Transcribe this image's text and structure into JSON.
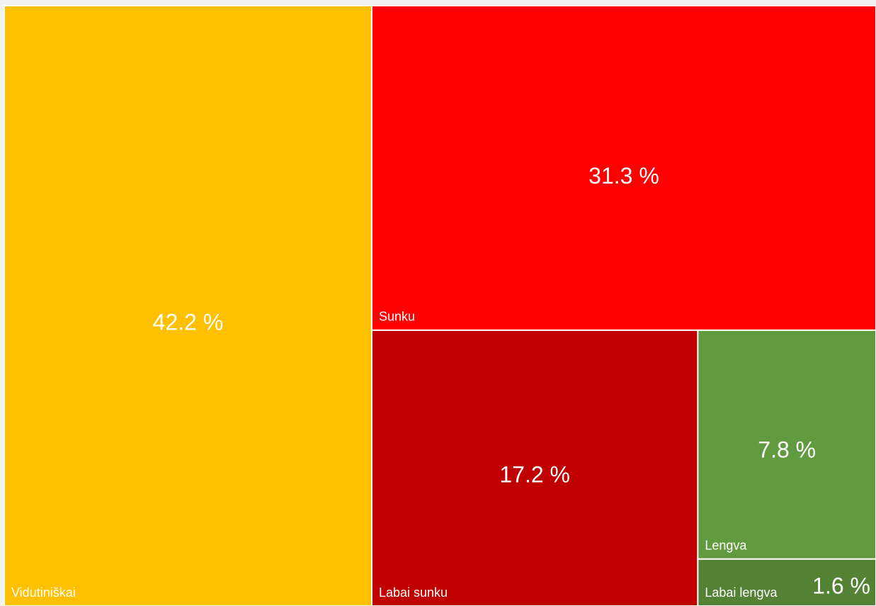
{
  "chart_data": {
    "type": "treemap",
    "categories": [
      "Vidutiniškai",
      "Sunku",
      "Labai sunku",
      "Lengva",
      "Labai lengva"
    ],
    "values": [
      42.2,
      31.3,
      17.2,
      7.8,
      1.6
    ],
    "value_labels": [
      "42.2 %",
      "31.3 %",
      "17.2 %",
      "7.8 %",
      "1.6 %"
    ],
    "colors": [
      "#ffc000",
      "#ff0000",
      "#c00000",
      "#629b3f",
      "#548235"
    ]
  }
}
